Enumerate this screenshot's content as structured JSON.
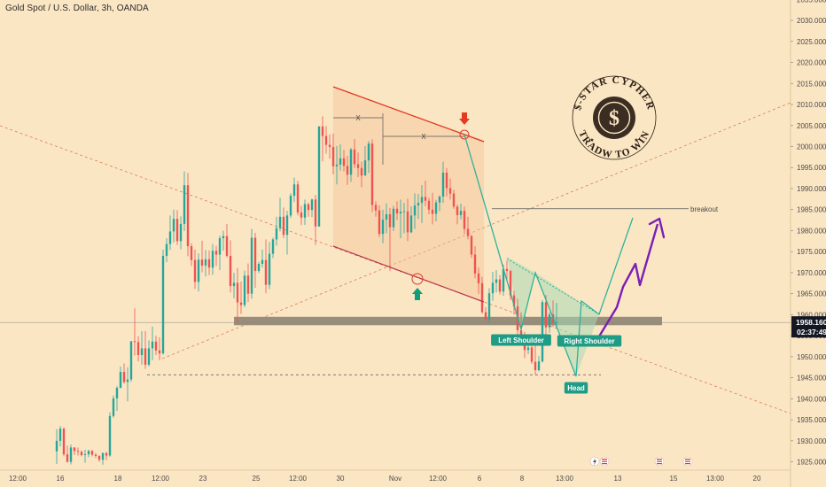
{
  "header": {
    "title": "Gold Spot / U.S. Dollar, 3h, OANDA"
  },
  "price_tag": {
    "price": "1958.160",
    "countdown": "02:37:49",
    "color": "#131722"
  },
  "logo": {
    "top_text": "$-STAR CYPHER",
    "bottom_text": "TRADW TO WIN",
    "symbol": "$"
  },
  "colors": {
    "background": "#fbe6c4",
    "candle_up": "#26a69a",
    "candle_down": "#ef5350",
    "channel_line": "#e0321e",
    "pattern": "#2bb39c",
    "arrow_projection": "#7a1fb4",
    "label_bg": "#1e9c85"
  },
  "chart_data": {
    "type": "candlestick",
    "symbol": "Gold Spot / U.S. Dollar",
    "timeframe": "3h",
    "source": "OANDA",
    "x_ticks": [
      "12:00",
      "16",
      "18",
      "12:00",
      "23",
      "25",
      "12:00",
      "30",
      "Nov",
      "12:00",
      "6",
      "8",
      "13:00",
      "13",
      "15",
      "13:00",
      "20"
    ],
    "y_ticks": [
      1925,
      1930,
      1935,
      1940,
      1945,
      1950,
      1955,
      1960,
      1965,
      1970,
      1975,
      1980,
      1985,
      1990,
      1995,
      2000,
      2005,
      2010,
      2015,
      2020,
      2025,
      2030,
      2035
    ],
    "y_tick_labels": [
      "1925.000",
      "1930.000",
      "1935.000",
      "1940.000",
      "1945.000",
      "1950.000",
      "1955.000",
      "1960.000",
      "1965.000",
      "1970.000",
      "1975.000",
      "1980.000",
      "1985.000",
      "1990.000",
      "1995.000",
      "2000.000",
      "2005.000",
      "2010.000",
      "2015.000",
      "2020.000",
      "2025.000",
      "2030.000",
      "2035.000"
    ],
    "ylim": [
      1923,
      2037
    ],
    "last_price": 1958.16,
    "support_zone": [
      1957.5,
      1959.5
    ],
    "breakout_level": 1985.2,
    "head_level": 1945.5,
    "annotations": [
      {
        "label": "Left Shoulder",
        "price": 1958.5
      },
      {
        "label": "Head",
        "price": 1945.5
      },
      {
        "label": "Right Shoulder",
        "price": 1959.0
      },
      {
        "label": "breakout",
        "price": 1985.2
      },
      {
        "label": "X",
        "price": 2009.5
      },
      {
        "label": "X",
        "price": 2005.0
      }
    ],
    "candles": [
      [
        1927.5,
        1932.8,
        1924.5,
        1930.0
      ],
      [
        1930.0,
        1933.5,
        1928.6,
        1932.9
      ],
      [
        1932.9,
        1933.2,
        1926.3,
        1926.8
      ],
      [
        1926.8,
        1928.9,
        1924.8,
        1925.0
      ],
      [
        1925.0,
        1929.1,
        1924.4,
        1928.4
      ],
      [
        1928.4,
        1928.5,
        1926.6,
        1927.6
      ],
      [
        1927.6,
        1928.4,
        1926.5,
        1927.4
      ],
      [
        1927.4,
        1927.7,
        1926.3,
        1926.6
      ],
      [
        1926.6,
        1927.9,
        1924.8,
        1926.8
      ],
      [
        1926.8,
        1927.9,
        1926.1,
        1927.6
      ],
      [
        1927.6,
        1927.8,
        1926.3,
        1926.7
      ],
      [
        1926.7,
        1927.1,
        1925.9,
        1926.4
      ],
      [
        1926.4,
        1926.6,
        1925.0,
        1925.5
      ],
      [
        1925.5,
        1927.2,
        1924.3,
        1927.1
      ],
      [
        1927.1,
        1927.4,
        1925.4,
        1926.5
      ],
      [
        1926.5,
        1936.8,
        1926.2,
        1935.9
      ],
      [
        1935.9,
        1940.8,
        1935.5,
        1940.1
      ],
      [
        1940.1,
        1943.0,
        1937.1,
        1942.6
      ],
      [
        1942.6,
        1947.7,
        1942.5,
        1946.4
      ],
      [
        1946.4,
        1948.4,
        1943.6,
        1944.0
      ],
      [
        1944.0,
        1947.5,
        1939.4,
        1944.6
      ],
      [
        1944.6,
        1953.7,
        1944.0,
        1953.7
      ],
      [
        1953.7,
        1961.5,
        1950.3,
        1953.5
      ],
      [
        1953.5,
        1954.9,
        1948.9,
        1950.4
      ],
      [
        1950.4,
        1956.1,
        1948.1,
        1952.0
      ],
      [
        1952.0,
        1956.1,
        1947.1,
        1948.1
      ],
      [
        1948.1,
        1953.9,
        1947.7,
        1952.0
      ],
      [
        1952.0,
        1957.2,
        1949.2,
        1953.6
      ],
      [
        1953.6,
        1955.0,
        1950.4,
        1951.5
      ],
      [
        1951.5,
        1954.6,
        1949.2,
        1950.8
      ],
      [
        1950.8,
        1975.5,
        1950.5,
        1974.0
      ],
      [
        1974.0,
        1978.2,
        1972.5,
        1976.8
      ],
      [
        1976.8,
        1983.6,
        1975.4,
        1979.8
      ],
      [
        1979.8,
        1985.0,
        1977.2,
        1982.8
      ],
      [
        1982.8,
        1984.9,
        1976.6,
        1977.5
      ],
      [
        1977.5,
        1983.4,
        1975.6,
        1981.6
      ],
      [
        1981.6,
        1994.1,
        1979.9,
        1990.8
      ],
      [
        1990.8,
        1993.7,
        1973.9,
        1976.3
      ],
      [
        1976.3,
        1977.0,
        1971.6,
        1973.0
      ],
      [
        1973.0,
        1975.5,
        1966.1,
        1967.8
      ],
      [
        1967.8,
        1974.6,
        1965.5,
        1973.1
      ],
      [
        1973.1,
        1977.6,
        1970.1,
        1971.7
      ],
      [
        1971.7,
        1975.4,
        1969.1,
        1973.2
      ],
      [
        1973.2,
        1975.3,
        1969.4,
        1971.2
      ],
      [
        1971.2,
        1976.8,
        1969.5,
        1975.2
      ],
      [
        1975.2,
        1976.4,
        1971.6,
        1974.3
      ],
      [
        1974.3,
        1978.8,
        1970.6,
        1978.2
      ],
      [
        1978.2,
        1980.0,
        1975.2,
        1978.7
      ],
      [
        1978.7,
        1981.6,
        1973.6,
        1974.0
      ],
      [
        1974.0,
        1977.7,
        1965.3,
        1966.8
      ],
      [
        1966.8,
        1970.0,
        1963.9,
        1967.6
      ],
      [
        1967.6,
        1971.1,
        1958.1,
        1962.9
      ],
      [
        1962.9,
        1967.9,
        1960.2,
        1962.3
      ],
      [
        1962.3,
        1970.5,
        1961.8,
        1969.3
      ],
      [
        1969.3,
        1972.2,
        1963.0,
        1965.0
      ],
      [
        1965.0,
        1980.4,
        1963.8,
        1978.3
      ],
      [
        1978.3,
        1979.5,
        1966.4,
        1970.4
      ],
      [
        1970.4,
        1972.6,
        1969.9,
        1972.1
      ],
      [
        1972.1,
        1975.5,
        1971.2,
        1973.0
      ],
      [
        1973.0,
        1977.9,
        1965.1,
        1967.1
      ],
      [
        1967.1,
        1977.3,
        1966.1,
        1974.5
      ],
      [
        1974.5,
        1978.3,
        1973.5,
        1977.9
      ],
      [
        1977.9,
        1983.3,
        1976.4,
        1980.6
      ],
      [
        1980.6,
        1987.8,
        1979.8,
        1983.3
      ],
      [
        1983.3,
        1985.5,
        1978.2,
        1979.0
      ],
      [
        1979.0,
        1984.7,
        1974.3,
        1983.6
      ],
      [
        1983.6,
        1988.9,
        1983.0,
        1988.3
      ],
      [
        1988.3,
        1992.6,
        1986.8,
        1991.0
      ],
      [
        1991.0,
        1991.9,
        1983.6,
        1984.3
      ],
      [
        1984.3,
        1985.9,
        1981.3,
        1983.1
      ],
      [
        1983.1,
        1987.4,
        1981.4,
        1986.3
      ],
      [
        1986.3,
        1986.7,
        1983.3,
        1984.9
      ],
      [
        1984.9,
        1987.6,
        1983.2,
        1987.4
      ],
      [
        1987.4,
        1988.5,
        1976.6,
        1981.0
      ],
      [
        1981.0,
        2004.8,
        1980.9,
        2004.8
      ],
      [
        2004.8,
        2007.2,
        1996.5,
        2002.5
      ],
      [
        2002.5,
        2004.9,
        1998.3,
        2000.4
      ],
      [
        2000.4,
        2002.9,
        1997.1,
        1999.9
      ],
      [
        1999.9,
        2003.1,
        1993.4,
        1995.3
      ],
      [
        1995.3,
        2000.1,
        1991.0,
        1995.7
      ],
      [
        1995.7,
        2000.5,
        1994.3,
        1997.2
      ],
      [
        1997.2,
        1999.2,
        1994.1,
        1995.4
      ],
      [
        1995.4,
        1997.8,
        1990.9,
        1993.3
      ],
      [
        1993.3,
        1999.7,
        1991.6,
        1999.3
      ],
      [
        1999.3,
        2001.8,
        1994.9,
        1995.8
      ],
      [
        1995.8,
        1998.6,
        1992.7,
        1994.9
      ],
      [
        1994.9,
        1996.4,
        1990.3,
        1993.1
      ],
      [
        1993.1,
        2000.1,
        1993.1,
        1996.7
      ],
      [
        1996.7,
        2001.3,
        1993.7,
        2000.7
      ],
      [
        2000.7,
        2001.7,
        1984.4,
        1986.1
      ],
      [
        1986.1,
        1987.0,
        1983.3,
        1984.8
      ],
      [
        1984.8,
        1986.0,
        1978.5,
        1979.2
      ],
      [
        1979.2,
        1985.0,
        1977.0,
        1982.6
      ],
      [
        1982.6,
        1986.5,
        1979.4,
        1983.9
      ],
      [
        1983.9,
        1985.4,
        1970.4,
        1980.8
      ],
      [
        1980.8,
        1985.9,
        1979.9,
        1985.2
      ],
      [
        1985.2,
        1987.0,
        1982.5,
        1984.1
      ],
      [
        1984.1,
        1987.4,
        1978.2,
        1984.5
      ],
      [
        1984.5,
        1986.6,
        1979.4,
        1984.6
      ],
      [
        1984.6,
        1987.6,
        1977.5,
        1979.6
      ],
      [
        1979.6,
        1985.8,
        1979.4,
        1983.6
      ],
      [
        1983.6,
        1988.9,
        1980.4,
        1986.0
      ],
      [
        1986.0,
        1988.7,
        1982.8,
        1986.6
      ],
      [
        1986.6,
        1990.8,
        1981.8,
        1988.0
      ],
      [
        1988.0,
        1991.9,
        1985.8,
        1987.1
      ],
      [
        1987.1,
        1987.8,
        1983.9,
        1985.0
      ],
      [
        1985.0,
        1989.0,
        1981.5,
        1984.0
      ],
      [
        1984.0,
        1987.3,
        1982.2,
        1986.7
      ],
      [
        1986.7,
        1988.4,
        1984.6,
        1988.1
      ],
      [
        1988.1,
        1996.4,
        1986.6,
        1993.8
      ],
      [
        1993.8,
        1994.9,
        1988.1,
        1990.1
      ],
      [
        1990.1,
        1992.4,
        1987.4,
        1988.8
      ],
      [
        1988.8,
        1989.7,
        1985.2,
        1985.7
      ],
      [
        1985.7,
        1986.2,
        1981.5,
        1983.7
      ],
      [
        1983.7,
        1986.4,
        1982.7,
        1984.7
      ],
      [
        1984.7,
        1985.7,
        1979.2,
        1980.4
      ],
      [
        1980.4,
        1983.3,
        1977.9,
        1978.7
      ],
      [
        1978.7,
        1979.0,
        1973.5,
        1974.3
      ],
      [
        1974.3,
        1976.3,
        1968.7,
        1969.8
      ],
      [
        1969.8,
        1971.2,
        1964.9,
        1967.5
      ],
      [
        1967.5,
        1969.0,
        1960.2,
        1960.6
      ],
      [
        1960.6,
        1961.8,
        1958.4,
        1958.8
      ],
      [
        1958.8,
        1966.3,
        1958.1,
        1965.1
      ],
      [
        1965.1,
        1970.2,
        1963.3,
        1967.6
      ],
      [
        1967.6,
        1970.6,
        1965.3,
        1968.4
      ],
      [
        1968.4,
        1969.4,
        1964.8,
        1965.5
      ],
      [
        1965.5,
        1971.9,
        1964.5,
        1970.9
      ],
      [
        1970.9,
        1972.9,
        1967.9,
        1970.4
      ],
      [
        1970.4,
        1970.7,
        1963.5,
        1964.6
      ],
      [
        1964.6,
        1965.7,
        1960.0,
        1962.0
      ],
      [
        1962.0,
        1963.8,
        1955.3,
        1956.3
      ],
      [
        1956.3,
        1960.6,
        1952.6,
        1953.7
      ],
      [
        1953.7,
        1955.9,
        1949.7,
        1951.6
      ],
      [
        1951.6,
        1954.5,
        1950.6,
        1952.2
      ],
      [
        1952.2,
        1954.4,
        1948.3,
        1948.8
      ],
      [
        1948.8,
        1952.6,
        1945.7,
        1946.8
      ],
      [
        1946.8,
        1950.2,
        1946.5,
        1948.9
      ],
      [
        1948.9,
        1963.5,
        1948.6,
        1963.0
      ],
      [
        1963.0,
        1964.7,
        1954.6,
        1957.0
      ],
      [
        1957.0,
        1960.7,
        1955.7,
        1960.1
      ],
      [
        1960.1,
        1963.4,
        1957.1,
        1958.2
      ],
      [
        1958.2,
        1962.8,
        1957.3,
        1958.2
      ]
    ]
  }
}
